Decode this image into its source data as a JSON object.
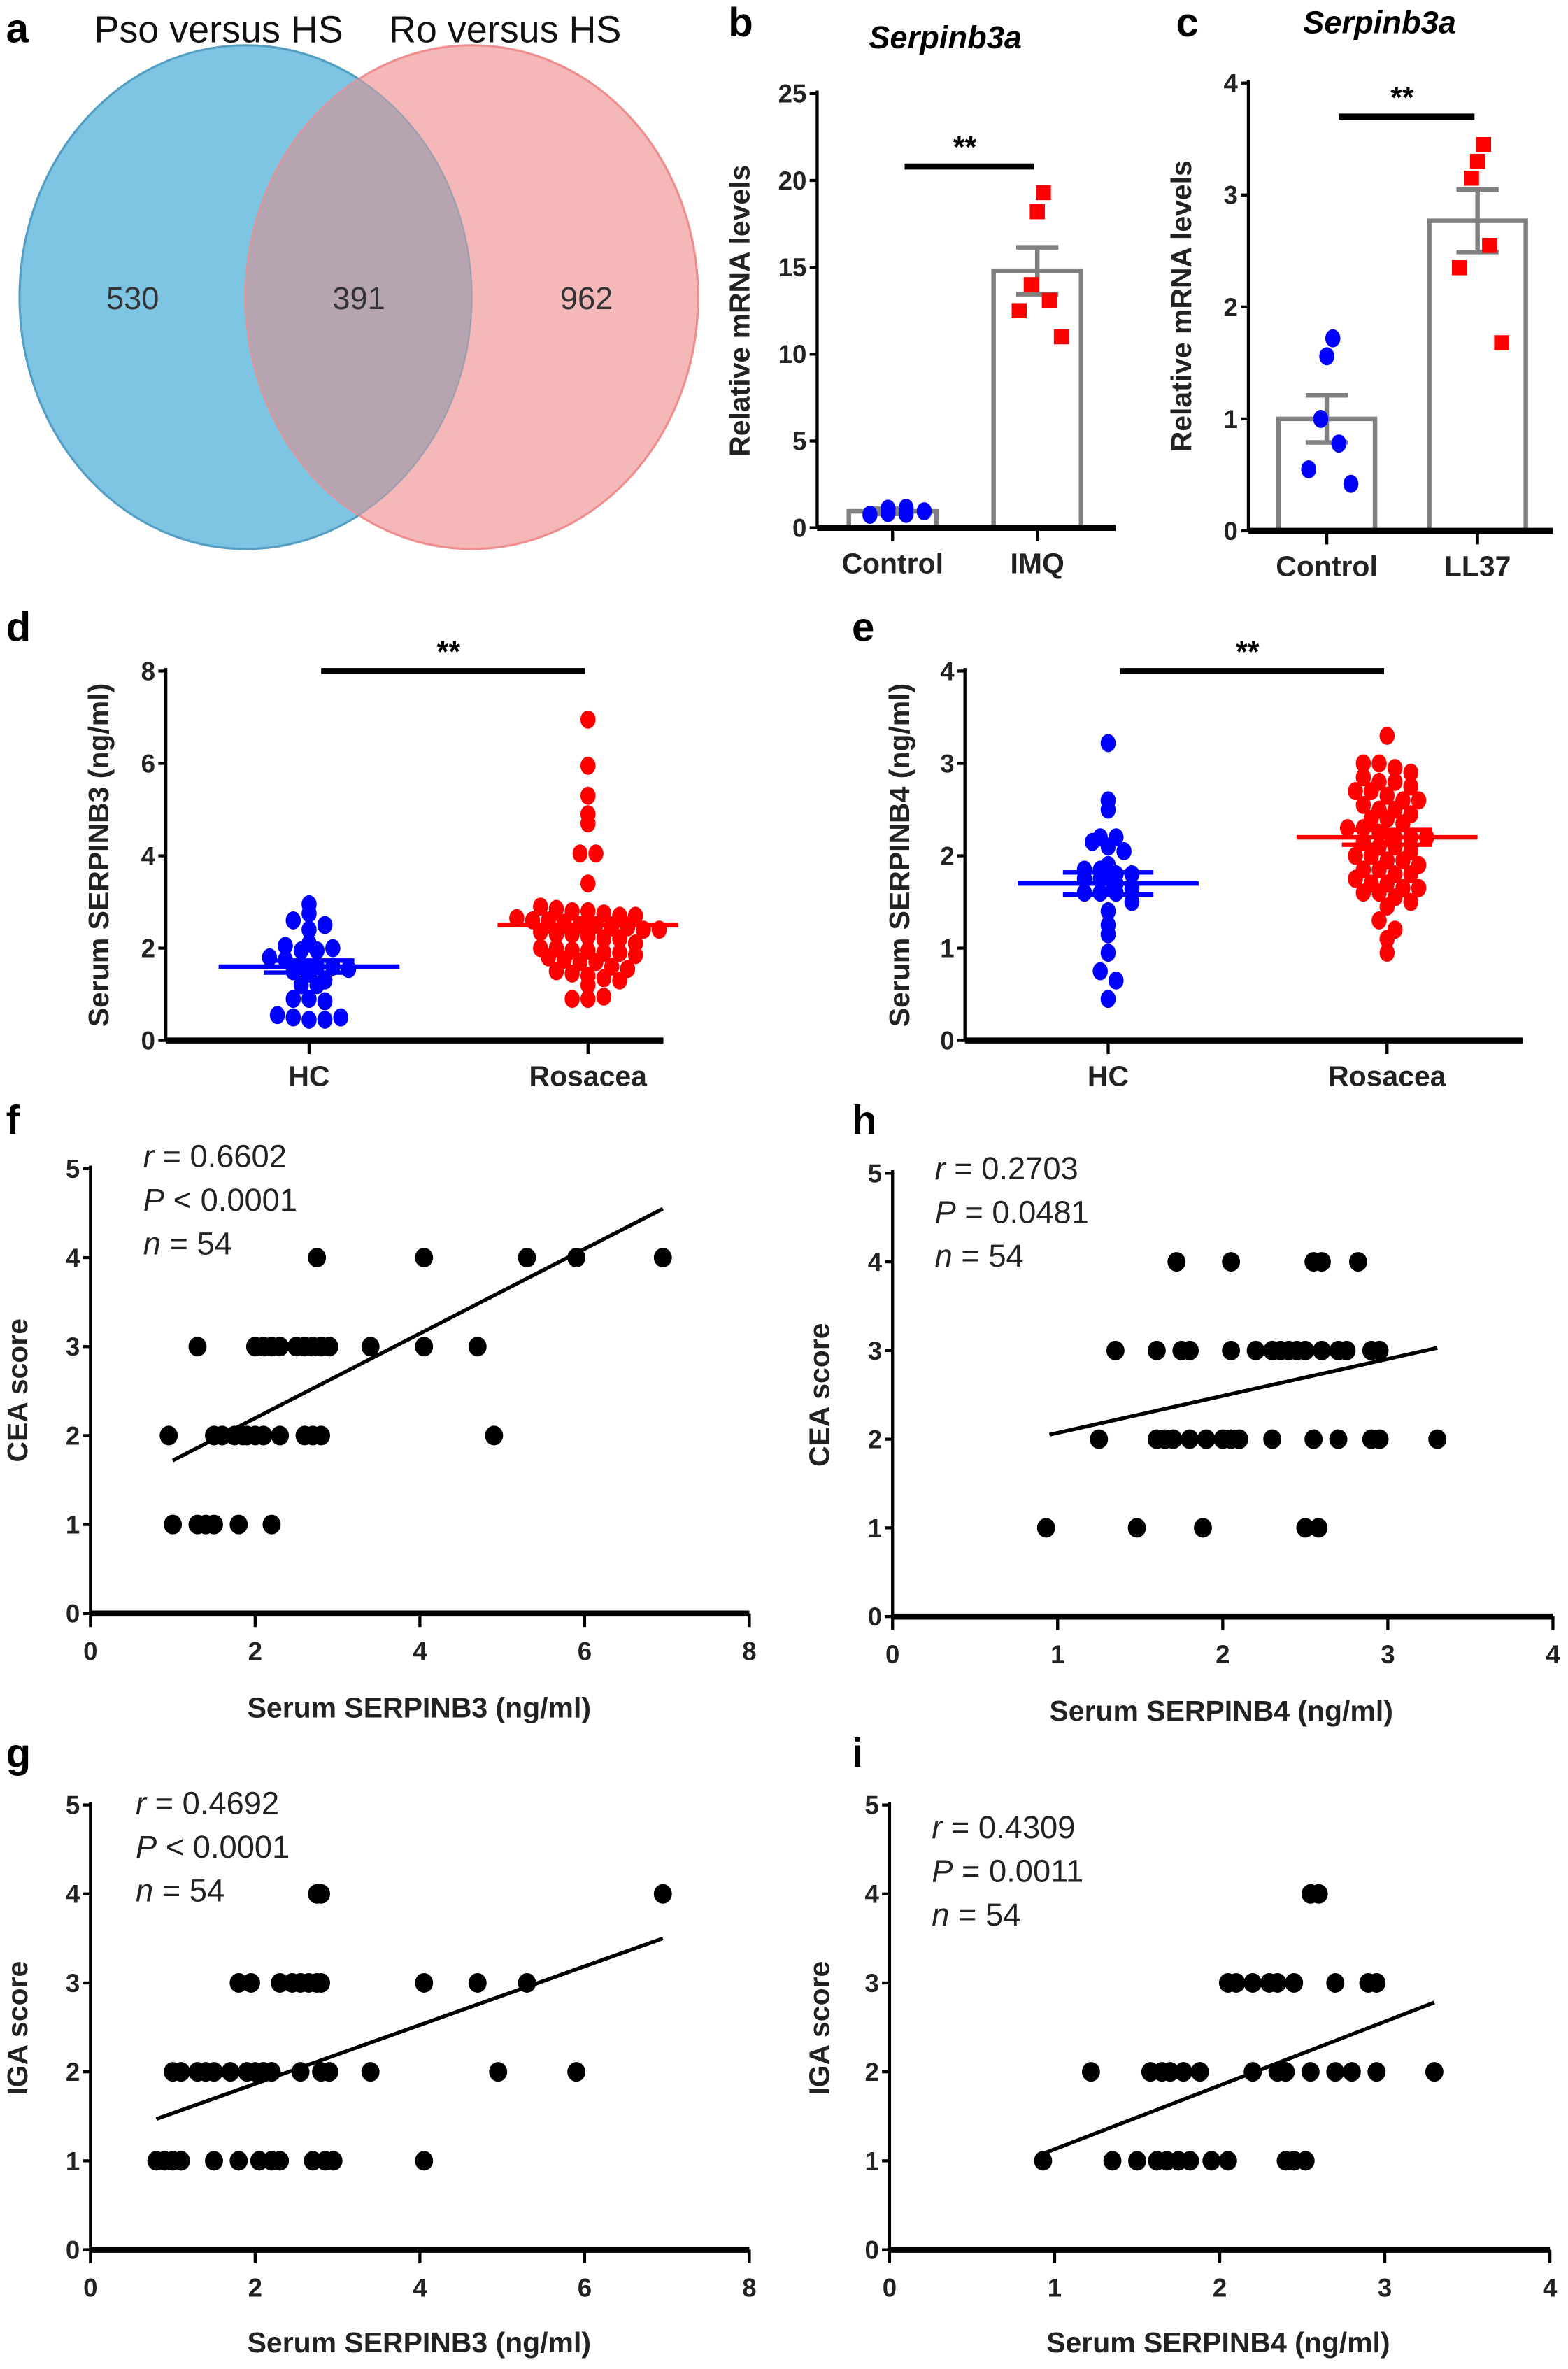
{
  "chart_data": [
    {
      "panel": "a",
      "type": "venn",
      "sets": [
        {
          "name": "Pso versus HS",
          "only": "530",
          "color": "#7ec4e3"
        },
        {
          "name": "Ro versus HS",
          "only": "962",
          "color": "#f5b8b9"
        }
      ],
      "overlap": "391",
      "overlap_color": "#b6a4b1"
    },
    {
      "panel": "b",
      "type": "bar",
      "title": "Serpinb3a",
      "ylabel": "Relative mRNA levels",
      "ylim": [
        0,
        25
      ],
      "yticks": [
        "0",
        "5",
        "10",
        "15",
        "20",
        "25"
      ],
      "categories": [
        "Control",
        "IMQ"
      ],
      "means": [
        0.95,
        14.8
      ],
      "sem": [
        0.15,
        1.35
      ],
      "points": [
        [
          0.8,
          1.1,
          0.85,
          1.15,
          0.75,
          0.95
        ],
        [
          19.3,
          18.2,
          14.0,
          13.1,
          12.5,
          11.0
        ]
      ],
      "point_colors": [
        "#0000ff",
        "#ff0000"
      ],
      "point_shapes": [
        "circle",
        "square"
      ],
      "significance": "**",
      "sig_y": 20.8
    },
    {
      "panel": "c",
      "type": "bar",
      "title": "Serpinb3a",
      "ylabel": "Relative mRNA levels",
      "ylim": [
        0,
        4
      ],
      "yticks": [
        "0",
        "1",
        "2",
        "3",
        "4"
      ],
      "categories": [
        "Control",
        "LL37"
      ],
      "means": [
        1.0,
        2.77
      ],
      "sem": [
        0.21,
        0.28
      ],
      "points": [
        [
          1.72,
          1.56,
          1.0,
          0.78,
          0.55,
          0.42
        ],
        [
          3.45,
          3.3,
          3.15,
          2.55,
          2.35,
          1.68
        ]
      ],
      "point_colors": [
        "#0000ff",
        "#ff0000"
      ],
      "point_shapes": [
        "circle",
        "square"
      ],
      "significance": "**",
      "sig_y": 3.7
    },
    {
      "panel": "d",
      "type": "scatter",
      "ylabel": "Serum SERPINB3 (ng/ml)",
      "ylim": [
        0,
        8
      ],
      "yticks": [
        "0",
        "2",
        "4",
        "6",
        "8"
      ],
      "categories": [
        "HC",
        "Rosacea"
      ],
      "means": [
        1.6,
        2.5
      ],
      "sem": [
        0.13,
        0.14
      ],
      "points": [
        [
          2.75,
          2.6,
          2.95,
          2.4,
          2.05,
          2.1,
          2.5,
          1.95,
          1.95,
          2.0,
          1.8,
          1.75,
          1.6,
          1.6,
          1.6,
          1.55,
          1.5,
          1.45,
          1.3,
          1.2,
          1.2,
          0.9,
          0.9,
          0.85,
          0.55,
          0.5,
          0.45,
          0.45,
          0.5
        ],
        [
          6.95,
          5.95,
          5.3,
          4.9,
          4.7,
          4.05,
          4.05,
          3.4,
          2.9,
          2.85,
          2.8,
          2.8,
          2.75,
          2.7,
          2.7,
          2.65,
          2.6,
          2.6,
          2.55,
          2.5,
          2.5,
          2.45,
          2.45,
          2.4,
          2.4,
          2.35,
          2.3,
          2.3,
          2.25,
          2.2,
          2.2,
          2.1,
          2.0,
          2.0,
          1.95,
          1.95,
          1.9,
          1.9,
          1.85,
          1.8,
          1.75,
          1.7,
          1.7,
          1.6,
          1.55,
          1.5,
          1.45,
          1.4,
          1.35,
          1.3,
          1.2,
          0.9,
          0.9,
          0.95
        ]
      ],
      "point_colors": [
        "#0000ff",
        "#ff0000"
      ],
      "significance": "**",
      "sig_y": 8.0
    },
    {
      "panel": "e",
      "type": "scatter",
      "ylabel": "Serum SERPINB4 (ng/ml)",
      "ylim": [
        0,
        4
      ],
      "yticks": [
        "0",
        "1",
        "2",
        "3",
        "4"
      ],
      "categories": [
        "HC",
        "Rosacea"
      ],
      "means": [
        1.7,
        2.2
      ],
      "sem": [
        0.12,
        0.08
      ],
      "points": [
        [
          3.22,
          2.6,
          2.5,
          2.2,
          2.2,
          2.15,
          2.1,
          2.05,
          1.9,
          1.85,
          1.85,
          1.8,
          1.8,
          1.75,
          1.75,
          1.7,
          1.65,
          1.6,
          1.6,
          1.6,
          1.5,
          1.4,
          1.25,
          1.15,
          0.95,
          0.75,
          0.65,
          0.45
        ],
        [
          3.3,
          3.0,
          3.0,
          2.95,
          2.9,
          2.85,
          2.8,
          2.8,
          2.75,
          2.7,
          2.7,
          2.65,
          2.6,
          2.6,
          2.55,
          2.5,
          2.5,
          2.45,
          2.4,
          2.4,
          2.35,
          2.3,
          2.3,
          2.25,
          2.2,
          2.2,
          2.2,
          2.15,
          2.1,
          2.1,
          2.05,
          2.0,
          2.0,
          1.95,
          1.95,
          1.9,
          1.85,
          1.85,
          1.8,
          1.8,
          1.75,
          1.7,
          1.7,
          1.65,
          1.6,
          1.6,
          1.55,
          1.5,
          1.45,
          1.3,
          1.2,
          1.1,
          0.95,
          1.65
        ]
      ],
      "point_colors": [
        "#0000ff",
        "#ff0000"
      ],
      "significance": "**",
      "sig_y": 4.0
    },
    {
      "panel": "f",
      "type": "scatter",
      "xlabel": "Serum SERPINB3 (ng/ml)",
      "ylabel": "CEA score",
      "xlim": [
        0,
        8
      ],
      "ylim": [
        0,
        5
      ],
      "xticks": [
        "0",
        "2",
        "4",
        "6",
        "8"
      ],
      "yticks": [
        "0",
        "1",
        "2",
        "3",
        "4",
        "5"
      ],
      "stats": {
        "r_label": "r",
        "r": " = 0.6602",
        "p_label": "P",
        "p": " < 0.0001",
        "n_label": "n",
        "n": " = 54"
      },
      "fit": [
        [
          1.0,
          1.72
        ],
        [
          6.95,
          4.55
        ]
      ],
      "x": [
        2.75,
        4.05,
        5.3,
        5.9,
        6.95,
        1.3,
        2.0,
        2.1,
        2.2,
        2.3,
        2.5,
        2.6,
        2.7,
        2.8,
        2.9,
        3.4,
        4.05,
        4.7,
        0.95,
        1.5,
        1.6,
        1.75,
        1.85,
        1.9,
        2.0,
        2.1,
        2.3,
        2.6,
        2.7,
        2.8,
        4.9,
        1.0,
        1.3,
        1.4,
        1.5,
        1.8,
        2.2
      ],
      "y": [
        4,
        4,
        4,
        4,
        4,
        3,
        3,
        3,
        3,
        3,
        3,
        3,
        3,
        3,
        3,
        3,
        3,
        3,
        2,
        2,
        2,
        2,
        2,
        2,
        2,
        2,
        2,
        2,
        2,
        2,
        2,
        1,
        1,
        1,
        1,
        1,
        1
      ]
    },
    {
      "panel": "h",
      "type": "scatter",
      "xlabel": "Serum SERPINB4 (ng/ml)",
      "ylabel": "CEA score",
      "xlim": [
        0,
        4
      ],
      "ylim": [
        0,
        5
      ],
      "xticks": [
        "0",
        "1",
        "2",
        "3",
        "4"
      ],
      "yticks": [
        "0",
        "1",
        "2",
        "3",
        "4",
        "5"
      ],
      "stats": {
        "r_label": "r",
        "r": " = 0.2703",
        "p_label": "P",
        "p": " = 0.0481",
        "n_label": "n",
        "n": " = 54"
      },
      "fit": [
        [
          0.95,
          2.05
        ],
        [
          3.3,
          3.03
        ]
      ],
      "x": [
        1.72,
        2.05,
        2.55,
        2.6,
        2.82,
        1.35,
        1.6,
        1.75,
        1.8,
        2.05,
        2.2,
        2.3,
        2.35,
        2.4,
        2.45,
        2.5,
        2.6,
        2.7,
        2.75,
        2.9,
        2.95,
        1.25,
        1.6,
        1.65,
        1.7,
        1.8,
        1.9,
        2.0,
        2.05,
        2.1,
        2.3,
        2.55,
        2.7,
        2.9,
        2.95,
        3.3,
        0.93,
        1.48,
        1.88,
        2.5,
        2.58
      ],
      "y": [
        4,
        4,
        4,
        4,
        4,
        3,
        3,
        3,
        3,
        3,
        3,
        3,
        3,
        3,
        3,
        3,
        3,
        3,
        3,
        3,
        3,
        2,
        2,
        2,
        2,
        2,
        2,
        2,
        2,
        2,
        2,
        2,
        2,
        2,
        2,
        2,
        1,
        1,
        1,
        1,
        1
      ]
    },
    {
      "panel": "g",
      "type": "scatter",
      "xlabel": "Serum SERPINB3 (ng/ml)",
      "ylabel": "IGA score",
      "xlim": [
        0,
        8
      ],
      "ylim": [
        0,
        5
      ],
      "xticks": [
        "0",
        "2",
        "4",
        "6",
        "8"
      ],
      "yticks": [
        "0",
        "1",
        "2",
        "3",
        "4",
        "5"
      ],
      "stats": {
        "r_label": "r",
        "r": " = 0.4692",
        "p_label": "P",
        "p": " < 0.0001",
        "n_label": "n",
        "n": " = 54"
      },
      "fit": [
        [
          0.8,
          1.47
        ],
        [
          6.95,
          3.5
        ]
      ],
      "x": [
        2.75,
        2.8,
        6.95,
        1.8,
        1.95,
        2.3,
        2.45,
        2.55,
        2.65,
        2.75,
        2.8,
        4.05,
        4.7,
        5.3,
        1.0,
        1.1,
        1.3,
        1.4,
        1.5,
        1.7,
        1.9,
        2.0,
        2.1,
        2.2,
        2.55,
        2.8,
        2.9,
        3.4,
        4.95,
        5.9,
        0.8,
        0.9,
        1.0,
        1.1,
        1.5,
        1.8,
        2.05,
        2.2,
        2.3,
        2.7,
        2.85,
        2.95,
        4.05
      ],
      "y": [
        4,
        4,
        4,
        3,
        3,
        3,
        3,
        3,
        3,
        3,
        3,
        3,
        3,
        3,
        2,
        2,
        2,
        2,
        2,
        2,
        2,
        2,
        2,
        2,
        2,
        2,
        2,
        2,
        2,
        2,
        1,
        1,
        1,
        1,
        1,
        1,
        1,
        1,
        1,
        1,
        1,
        1,
        1
      ]
    },
    {
      "panel": "i",
      "type": "scatter",
      "xlabel": "Serum SERPINB4 (ng/ml)",
      "ylabel": "IGA score",
      "xlim": [
        0,
        4
      ],
      "ylim": [
        0,
        5
      ],
      "xticks": [
        "0",
        "1",
        "2",
        "3",
        "4"
      ],
      "yticks": [
        "0",
        "1",
        "2",
        "3",
        "4",
        "5"
      ],
      "stats": {
        "r_label": "r",
        "r": " = 0.4309",
        "p_label": "P",
        "p": " = 0.0011",
        "n_label": "n",
        "n": " = 54"
      },
      "fit": [
        [
          0.93,
          1.08
        ],
        [
          3.3,
          2.78
        ]
      ],
      "x": [
        2.55,
        2.6,
        2.05,
        2.1,
        2.2,
        2.3,
        2.35,
        2.45,
        2.7,
        2.9,
        2.95,
        1.22,
        1.58,
        1.65,
        1.7,
        1.78,
        1.88,
        2.2,
        2.35,
        2.4,
        2.55,
        2.7,
        2.8,
        2.95,
        3.3,
        0.93,
        1.35,
        1.5,
        1.62,
        1.68,
        1.75,
        1.82,
        1.95,
        2.05,
        2.4,
        2.45,
        2.52
      ],
      "y": [
        4,
        4,
        3,
        3,
        3,
        3,
        3,
        3,
        3,
        3,
        3,
        2,
        2,
        2,
        2,
        2,
        2,
        2,
        2,
        2,
        2,
        2,
        2,
        2,
        2,
        1,
        1,
        1,
        1,
        1,
        1,
        1,
        1,
        1,
        1,
        1,
        1
      ]
    }
  ]
}
